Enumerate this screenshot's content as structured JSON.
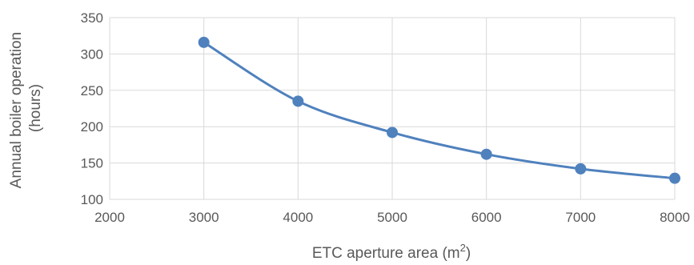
{
  "chart_data": {
    "type": "line",
    "title": "",
    "xlabel": "ETC aperture area (m",
    "xlabel_sup": "2",
    "xlabel_tail": ")",
    "ylabel_line1": "Annual boiler operation",
    "ylabel_line2": "(hours)",
    "xlim": [
      2000,
      8000
    ],
    "ylim": [
      100,
      350
    ],
    "x_ticks": [
      "2000",
      "3000",
      "4000",
      "5000",
      "6000",
      "7000",
      "8000"
    ],
    "y_ticks": [
      "100",
      "150",
      "200",
      "250",
      "300",
      "350"
    ],
    "grid": true,
    "smooth": true,
    "series": [
      {
        "x": [
          3000,
          4000,
          5000,
          6000,
          7000,
          8000
        ],
        "y": [
          316,
          235,
          192,
          162,
          142,
          129
        ]
      }
    ],
    "colors": {
      "series": "#4f81bd",
      "grid": "#d9d9d9",
      "text": "#595959"
    }
  }
}
